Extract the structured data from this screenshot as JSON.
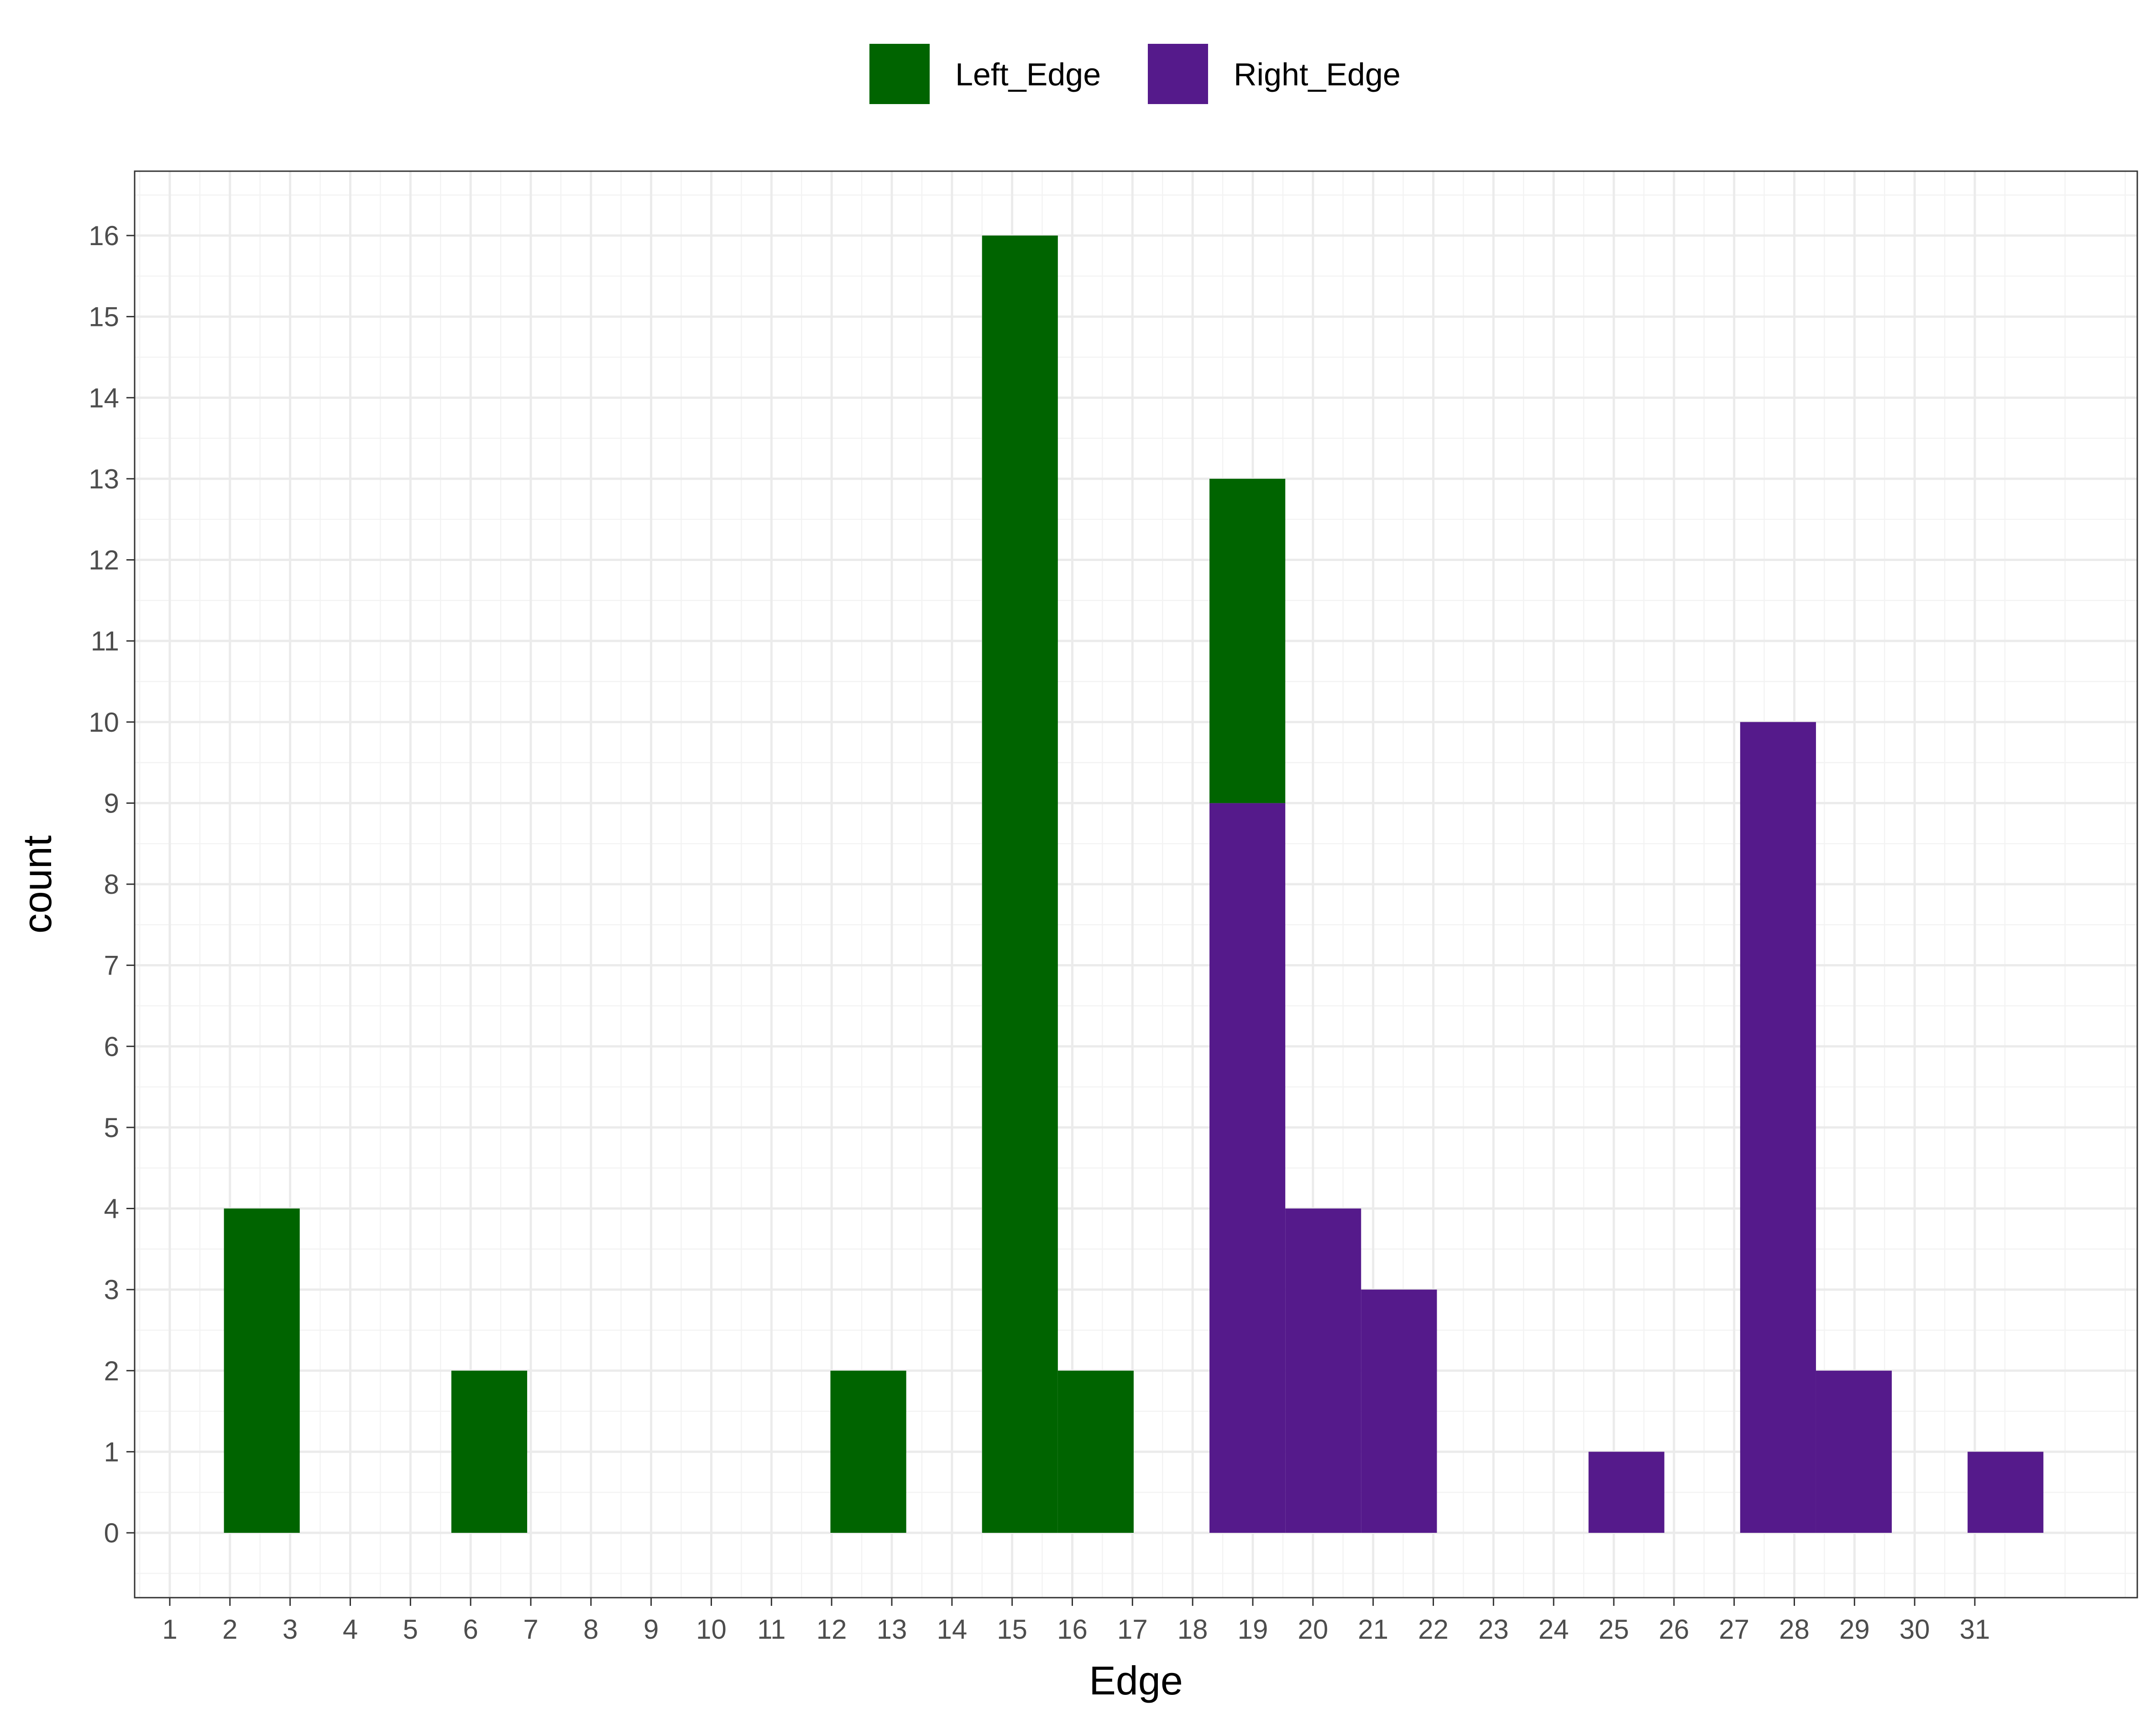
{
  "chart_data": {
    "type": "bar",
    "stacked": true,
    "xlabel": "Edge",
    "ylabel": "count",
    "x_ticks": [
      1,
      2,
      3,
      4,
      5,
      6,
      7,
      8,
      9,
      10,
      11,
      12,
      13,
      14,
      15,
      16,
      17,
      18,
      19,
      20,
      21,
      22,
      23,
      24,
      25,
      26,
      27,
      28,
      29,
      30,
      31
    ],
    "y_ticks": [
      0,
      1,
      2,
      3,
      4,
      5,
      6,
      7,
      8,
      9,
      10,
      11,
      12,
      13,
      14,
      15,
      16
    ],
    "ylim": [
      -0.8,
      16.8
    ],
    "grid": true,
    "legend_position": "top",
    "series": [
      {
        "name": "Left_Edge",
        "color": "#006400",
        "bars": [
          {
            "x_start": 1.9,
            "x_end": 3.16,
            "value": 4
          },
          {
            "x_start": 5.68,
            "x_end": 6.94,
            "value": 2
          },
          {
            "x_start": 11.98,
            "x_end": 13.24,
            "value": 2
          },
          {
            "x_start": 14.5,
            "x_end": 15.76,
            "value": 16
          },
          {
            "x_start": 15.76,
            "x_end": 17.02,
            "value": 2
          },
          {
            "x_start": 18.28,
            "x_end": 19.54,
            "value": 4
          }
        ]
      },
      {
        "name": "Right_Edge",
        "color": "#551A8B",
        "bars": [
          {
            "x_start": 18.28,
            "x_end": 19.54,
            "value": 9
          },
          {
            "x_start": 19.54,
            "x_end": 20.8,
            "value": 4
          },
          {
            "x_start": 20.8,
            "x_end": 22.06,
            "value": 3
          },
          {
            "x_start": 24.58,
            "x_end": 25.84,
            "value": 1
          },
          {
            "x_start": 27.1,
            "x_end": 28.36,
            "value": 10
          },
          {
            "x_start": 28.36,
            "x_end": 29.62,
            "value": 2
          },
          {
            "x_start": 30.88,
            "x_end": 32.14,
            "value": 1
          }
        ]
      }
    ]
  }
}
